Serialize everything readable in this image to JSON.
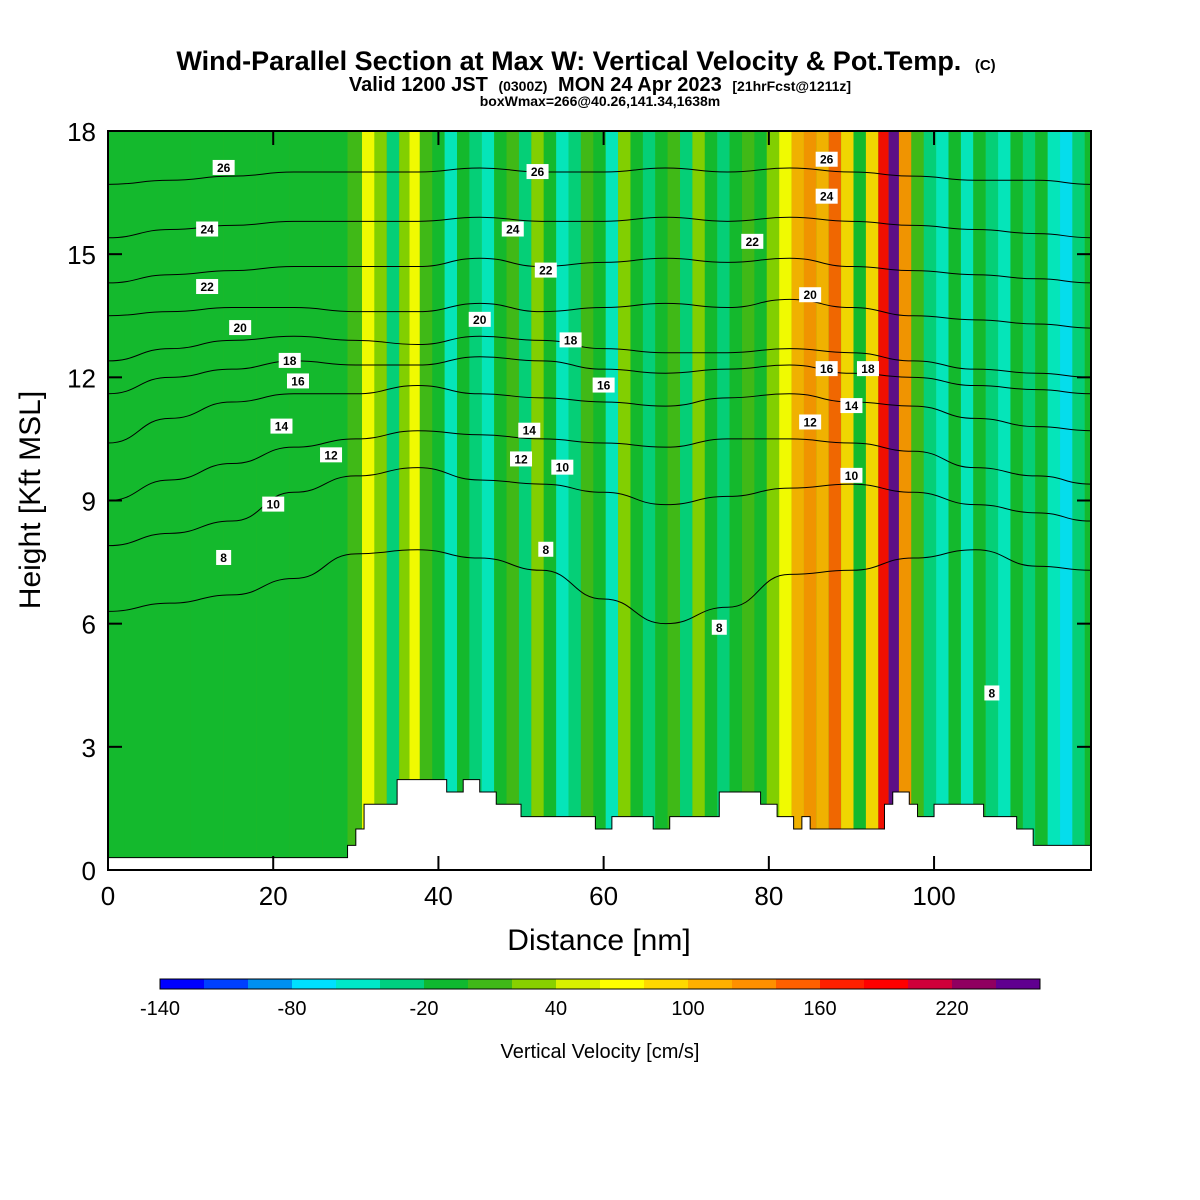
{
  "title": {
    "main": "Wind-Parallel Section at Max W: Vertical Velocity & Pot.Temp.",
    "main_suffix": "(C)",
    "valid_prefix": "Valid 1200 JST",
    "valid_utc": "(0300Z)",
    "valid_date": "MON 24 Apr 2023",
    "valid_fcst": "[21hrFcst@1211z]",
    "box_info": "boxWmax=266@40.26,141.34,1638m"
  },
  "chart_data": {
    "type": "heatmap",
    "xlabel": "Distance [nm]",
    "ylabel": "Height [Kft MSL]",
    "xlim": [
      0,
      119
    ],
    "ylim": [
      0,
      18
    ],
    "x_ticks": [
      "0",
      "20",
      "40",
      "60",
      "80",
      "100"
    ],
    "x_tick_values": [
      0,
      20,
      40,
      60,
      80,
      100
    ],
    "y_ticks": [
      "0",
      "3",
      "6",
      "9",
      "12",
      "15",
      "18"
    ],
    "y_tick_values": [
      0,
      3,
      6,
      9,
      12,
      15,
      18
    ],
    "grid": false,
    "colorbar": {
      "label": "Vertical Velocity [cm/s]",
      "min": -140,
      "max": 260,
      "step": 20,
      "tick_labels": [
        "-140",
        "-80",
        "-20",
        "40",
        "100",
        "160",
        "220"
      ],
      "tick_values": [
        -140,
        -80,
        -20,
        40,
        100,
        160,
        220
      ],
      "colors": [
        "#0000ff",
        "#0040ff",
        "#0090f0",
        "#00e0ff",
        "#00e8c8",
        "#00d080",
        "#10b830",
        "#40b818",
        "#88d000",
        "#d8f000",
        "#ffff00",
        "#ffd800",
        "#ffb000",
        "#ff9000",
        "#ff6000",
        "#ff2000",
        "#ff0000",
        "#d0003a",
        "#900060",
        "#600090"
      ]
    },
    "columns": [
      {
        "x": 0,
        "w": -10
      },
      {
        "x": 4,
        "w": -10
      },
      {
        "x": 8,
        "w": -8
      },
      {
        "x": 12,
        "w": -8
      },
      {
        "x": 16,
        "w": -10
      },
      {
        "x": 20,
        "w": -8
      },
      {
        "x": 24,
        "w": -10
      },
      {
        "x": 28,
        "w": -6
      },
      {
        "x": 30,
        "w": 10
      },
      {
        "x": 31.5,
        "w": 60
      },
      {
        "x": 33,
        "w": 20
      },
      {
        "x": 34.5,
        "w": -40
      },
      {
        "x": 36,
        "w": 30
      },
      {
        "x": 37,
        "w": 70
      },
      {
        "x": 38.5,
        "w": 10
      },
      {
        "x": 40,
        "w": -20
      },
      {
        "x": 41.5,
        "w": -50
      },
      {
        "x": 43,
        "w": -20
      },
      {
        "x": 44.5,
        "w": -40
      },
      {
        "x": 46,
        "w": -60
      },
      {
        "x": 47.5,
        "w": -20
      },
      {
        "x": 49,
        "w": 10
      },
      {
        "x": 50.5,
        "w": -30
      },
      {
        "x": 52,
        "w": 30
      },
      {
        "x": 53.5,
        "w": -20
      },
      {
        "x": 55,
        "w": -60
      },
      {
        "x": 56.5,
        "w": -30
      },
      {
        "x": 58,
        "w": 10
      },
      {
        "x": 59.5,
        "w": -20
      },
      {
        "x": 61,
        "w": -50
      },
      {
        "x": 62.5,
        "w": 20
      },
      {
        "x": 64,
        "w": -20
      },
      {
        "x": 65.5,
        "w": -40
      },
      {
        "x": 67,
        "w": -20
      },
      {
        "x": 68.5,
        "w": 10
      },
      {
        "x": 70,
        "w": -30
      },
      {
        "x": 71.5,
        "w": 20
      },
      {
        "x": 73,
        "w": -20
      },
      {
        "x": 74.5,
        "w": -40
      },
      {
        "x": 76,
        "w": -10
      },
      {
        "x": 77.5,
        "w": 10
      },
      {
        "x": 79,
        "w": -10
      },
      {
        "x": 80.5,
        "w": 20
      },
      {
        "x": 82,
        "w": 60
      },
      {
        "x": 83.5,
        "w": 100
      },
      {
        "x": 85,
        "w": 120
      },
      {
        "x": 86.5,
        "w": 110
      },
      {
        "x": 88,
        "w": 140
      },
      {
        "x": 89.5,
        "w": 80
      },
      {
        "x": 91,
        "w": -20
      },
      {
        "x": 92.5,
        "w": 80
      },
      {
        "x": 94,
        "w": 180
      },
      {
        "x": 95,
        "w": 260
      },
      {
        "x": 96.5,
        "w": 120
      },
      {
        "x": 98,
        "w": 10
      },
      {
        "x": 99.5,
        "w": -30
      },
      {
        "x": 101,
        "w": -60
      },
      {
        "x": 102.5,
        "w": -20
      },
      {
        "x": 104,
        "w": -50
      },
      {
        "x": 105.5,
        "w": -10
      },
      {
        "x": 107,
        "w": -30
      },
      {
        "x": 108.5,
        "w": -50
      },
      {
        "x": 110,
        "w": -20
      },
      {
        "x": 111.5,
        "w": -40
      },
      {
        "x": 113,
        "w": -10
      },
      {
        "x": 114.5,
        "w": -60
      },
      {
        "x": 116,
        "w": -80
      },
      {
        "x": 117.5,
        "w": -30
      },
      {
        "x": 119,
        "w": -20
      }
    ],
    "terrain": [
      [
        0,
        0.3
      ],
      [
        29,
        0.3
      ],
      [
        29,
        0.6
      ],
      [
        30,
        0.6
      ],
      [
        30,
        1.0
      ],
      [
        31,
        1.0
      ],
      [
        31,
        1.6
      ],
      [
        35,
        1.6
      ],
      [
        35,
        2.2
      ],
      [
        41,
        2.2
      ],
      [
        41,
        1.9
      ],
      [
        43,
        1.9
      ],
      [
        43,
        2.2
      ],
      [
        45,
        2.2
      ],
      [
        45,
        1.9
      ],
      [
        47,
        1.9
      ],
      [
        47,
        1.6
      ],
      [
        50,
        1.6
      ],
      [
        50,
        1.3
      ],
      [
        59,
        1.3
      ],
      [
        59,
        1.0
      ],
      [
        61,
        1.0
      ],
      [
        61,
        1.3
      ],
      [
        66,
        1.3
      ],
      [
        66,
        1.0
      ],
      [
        68,
        1.0
      ],
      [
        68,
        1.3
      ],
      [
        74,
        1.3
      ],
      [
        74,
        1.9
      ],
      [
        79,
        1.9
      ],
      [
        79,
        1.6
      ],
      [
        81,
        1.6
      ],
      [
        81,
        1.3
      ],
      [
        83,
        1.3
      ],
      [
        83,
        1.0
      ],
      [
        84,
        1.0
      ],
      [
        84,
        1.3
      ],
      [
        85,
        1.3
      ],
      [
        85,
        1.0
      ],
      [
        94,
        1.0
      ],
      [
        94,
        1.6
      ],
      [
        95,
        1.6
      ],
      [
        95,
        1.9
      ],
      [
        97,
        1.9
      ],
      [
        97,
        1.6
      ],
      [
        98,
        1.6
      ],
      [
        98,
        1.3
      ],
      [
        100,
        1.3
      ],
      [
        100,
        1.6
      ],
      [
        106,
        1.6
      ],
      [
        106,
        1.3
      ],
      [
        110,
        1.3
      ],
      [
        110,
        1.0
      ],
      [
        112,
        1.0
      ],
      [
        112,
        0.6
      ],
      [
        119,
        0.6
      ]
    ],
    "contours": [
      {
        "label": "8",
        "y": [
          6.3,
          6.5,
          6.7,
          7.1,
          7.7,
          7.8,
          7.6,
          7.3,
          6.6,
          6.0,
          6.4,
          7.2,
          7.3,
          7.6,
          7.8,
          7.4,
          7.3
        ]
      },
      {
        "label": "10",
        "y": [
          7.9,
          8.2,
          8.5,
          9.2,
          9.6,
          9.8,
          9.5,
          9.4,
          9.2,
          8.9,
          9.1,
          9.3,
          9.4,
          9.2,
          8.9,
          8.7,
          8.5
        ]
      },
      {
        "label": "12",
        "y": [
          9.0,
          9.5,
          9.9,
          10.3,
          10.5,
          10.7,
          10.6,
          10.5,
          10.4,
          10.3,
          10.5,
          10.5,
          10.4,
          10.2,
          9.8,
          9.6,
          9.4
        ]
      },
      {
        "label": "14",
        "y": [
          10.4,
          11.0,
          11.4,
          11.6,
          11.6,
          11.8,
          11.6,
          11.5,
          11.4,
          11.3,
          11.5,
          11.6,
          11.4,
          11.3,
          11.0,
          10.8,
          10.7
        ]
      },
      {
        "label": "16",
        "y": [
          11.6,
          12.0,
          12.2,
          12.4,
          12.3,
          12.3,
          12.5,
          12.4,
          12.2,
          12.1,
          12.2,
          12.3,
          12.1,
          12.0,
          11.8,
          11.7,
          11.6
        ]
      },
      {
        "label": "18",
        "y": [
          12.4,
          12.7,
          12.9,
          13.0,
          12.9,
          12.8,
          13.0,
          12.9,
          12.7,
          12.6,
          12.6,
          12.7,
          12.6,
          12.4,
          12.2,
          12.1,
          12.0
        ]
      },
      {
        "label": "20",
        "y": [
          13.5,
          13.6,
          13.7,
          13.7,
          13.6,
          13.6,
          13.8,
          13.6,
          13.7,
          13.8,
          13.7,
          13.9,
          13.7,
          13.5,
          13.4,
          13.3,
          13.2
        ]
      },
      {
        "label": "22",
        "y": [
          14.3,
          14.5,
          14.6,
          14.7,
          14.7,
          14.7,
          14.9,
          14.7,
          14.8,
          14.9,
          14.8,
          14.9,
          14.7,
          14.6,
          14.5,
          14.4,
          14.3
        ]
      },
      {
        "label": "24",
        "y": [
          15.4,
          15.6,
          15.7,
          15.8,
          15.8,
          15.8,
          15.9,
          15.8,
          15.8,
          15.9,
          15.8,
          15.9,
          15.8,
          15.7,
          15.6,
          15.5,
          15.4
        ]
      },
      {
        "label": "26",
        "y": [
          16.7,
          16.8,
          16.9,
          17.0,
          17.0,
          17.0,
          17.1,
          17.0,
          17.0,
          17.1,
          17.0,
          17.1,
          17.0,
          16.9,
          16.8,
          16.8,
          16.7
        ]
      }
    ],
    "contour_x": [
      0,
      7.5,
      15,
      22.5,
      30,
      37.5,
      45,
      52.5,
      60,
      67.5,
      75,
      82.5,
      90,
      97.5,
      105,
      112.5,
      119
    ],
    "contour_labels": [
      {
        "text": "26",
        "x": 14,
        "y": 17.1
      },
      {
        "text": "24",
        "x": 12,
        "y": 15.6
      },
      {
        "text": "22",
        "x": 12,
        "y": 14.2
      },
      {
        "text": "20",
        "x": 16,
        "y": 13.2
      },
      {
        "text": "18",
        "x": 22,
        "y": 12.4
      },
      {
        "text": "16",
        "x": 23,
        "y": 11.9
      },
      {
        "text": "14",
        "x": 21,
        "y": 10.8
      },
      {
        "text": "12",
        "x": 27,
        "y": 10.1
      },
      {
        "text": "10",
        "x": 20,
        "y": 8.9
      },
      {
        "text": "8",
        "x": 14,
        "y": 7.6
      },
      {
        "text": "26",
        "x": 52,
        "y": 17.0
      },
      {
        "text": "24",
        "x": 49,
        "y": 15.6
      },
      {
        "text": "22",
        "x": 53,
        "y": 14.6
      },
      {
        "text": "20",
        "x": 45,
        "y": 13.4
      },
      {
        "text": "18",
        "x": 56,
        "y": 12.9
      },
      {
        "text": "16",
        "x": 60,
        "y": 11.8
      },
      {
        "text": "14",
        "x": 51,
        "y": 10.7
      },
      {
        "text": "12",
        "x": 50,
        "y": 10.0
      },
      {
        "text": "10",
        "x": 55,
        "y": 9.8
      },
      {
        "text": "8",
        "x": 53,
        "y": 7.8
      },
      {
        "text": "26",
        "x": 87,
        "y": 17.3
      },
      {
        "text": "24",
        "x": 87,
        "y": 16.4
      },
      {
        "text": "22",
        "x": 78,
        "y": 15.3
      },
      {
        "text": "20",
        "x": 85,
        "y": 14.0
      },
      {
        "text": "16",
        "x": 87,
        "y": 12.2
      },
      {
        "text": "18",
        "x": 92,
        "y": 12.2
      },
      {
        "text": "14",
        "x": 90,
        "y": 11.3
      },
      {
        "text": "12",
        "x": 85,
        "y": 10.9
      },
      {
        "text": "10",
        "x": 90,
        "y": 9.6
      },
      {
        "text": "8",
        "x": 74,
        "y": 5.9
      },
      {
        "text": "8",
        "x": 107,
        "y": 4.3
      }
    ]
  }
}
